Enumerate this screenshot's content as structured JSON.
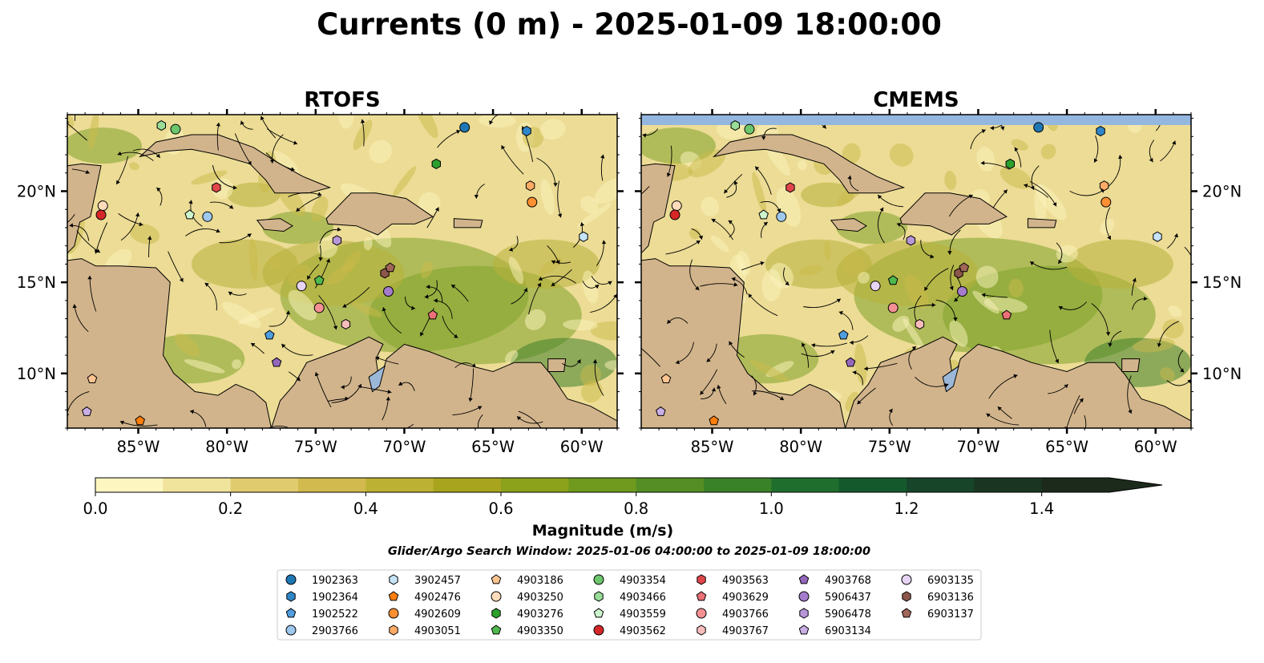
{
  "figure": {
    "title": "Currents (0 m) - 2025-01-09 18:00:00",
    "search_window": "Glider/Argo Search Window: 2025-01-06 04:00:00 to 2025-01-09 18:00:00"
  },
  "panels": [
    {
      "title": "RTOFS"
    },
    {
      "title": "CMEMS"
    }
  ],
  "axes": {
    "lon_ticks": [
      {
        "value": -85,
        "label": "85°W"
      },
      {
        "value": -80,
        "label": "80°W"
      },
      {
        "value": -75,
        "label": "75°W"
      },
      {
        "value": -70,
        "label": "70°W"
      },
      {
        "value": -65,
        "label": "65°W"
      },
      {
        "value": -60,
        "label": "60°W"
      }
    ],
    "lat_ticks": [
      {
        "value": 10,
        "label": "10°N"
      },
      {
        "value": 15,
        "label": "15°N"
      },
      {
        "value": 20,
        "label": "20°N"
      }
    ],
    "xlim": [
      -89,
      -58
    ],
    "ylim": [
      7,
      24.2
    ]
  },
  "colorbar": {
    "label": "Magnitude (m/s)",
    "range": [
      0,
      1.5
    ],
    "extend": "max",
    "ticks": [
      {
        "value": 0.0,
        "label": "0.0"
      },
      {
        "value": 0.2,
        "label": "0.2"
      },
      {
        "value": 0.4,
        "label": "0.4"
      },
      {
        "value": 0.6,
        "label": "0.6"
      },
      {
        "value": 0.8,
        "label": "0.8"
      },
      {
        "value": 1.0,
        "label": "1.0"
      },
      {
        "value": 1.2,
        "label": "1.2"
      },
      {
        "value": 1.4,
        "label": "1.4"
      }
    ],
    "colors": [
      "#fdf6c0",
      "#f0e39c",
      "#e0cb6e",
      "#d2ba4e",
      "#bcb133",
      "#a8a41e",
      "#8ca21a",
      "#6f9a1e",
      "#548e24",
      "#3a8228",
      "#1f6e2e",
      "#13592c",
      "#17452a",
      "#1a3622",
      "#1b2a1b",
      "#1b2a1b"
    ]
  },
  "colors": {
    "land": "#d2b48c",
    "water_fill": "#9cb8d8",
    "ocean_low": "#fdf6c0",
    "ocean_high": "#2e6e2a",
    "cmems_no_data": "#94b7e0"
  },
  "chart_data": {
    "type": "map",
    "floats": [
      {
        "id": "1902363",
        "marker": "circle",
        "color": "#1f77b4",
        "lon": -66.6,
        "lat": 23.5
      },
      {
        "id": "1902364",
        "marker": "hexagon",
        "color": "#2f86c8",
        "lon": -63.1,
        "lat": 23.3
      },
      {
        "id": "1902522",
        "marker": "pentagon",
        "color": "#4f9ee0",
        "lon": -77.6,
        "lat": 12.1
      },
      {
        "id": "2903766",
        "marker": "circle",
        "color": "#9ec8ee",
        "lon": -81.1,
        "lat": 18.6
      },
      {
        "id": "3902457",
        "marker": "hexagon",
        "color": "#c6e4f8",
        "lon": -59.9,
        "lat": 17.5
      },
      {
        "id": "4902476",
        "marker": "pentagon",
        "color": "#ff7f0e",
        "lon": -84.9,
        "lat": 7.4
      },
      {
        "id": "4902609",
        "marker": "circle",
        "color": "#ff8f33",
        "lon": -62.8,
        "lat": 19.4
      },
      {
        "id": "4903051",
        "marker": "hexagon",
        "color": "#ffab66",
        "lon": -62.9,
        "lat": 20.3
      },
      {
        "id": "4903186",
        "marker": "pentagon",
        "color": "#ffc591",
        "lon": -87.6,
        "lat": 9.7
      },
      {
        "id": "4903250",
        "marker": "circle",
        "color": "#ffdcbb",
        "lon": -87.0,
        "lat": 19.2
      },
      {
        "id": "4903276",
        "marker": "hexagon",
        "color": "#2ca02c",
        "lon": -68.2,
        "lat": 21.5
      },
      {
        "id": "4903350",
        "marker": "pentagon",
        "color": "#4fb84f",
        "lon": -74.8,
        "lat": 15.1
      },
      {
        "id": "4903354",
        "marker": "circle",
        "color": "#6cc66c",
        "lon": -82.9,
        "lat": 23.4
      },
      {
        "id": "4903466",
        "marker": "hexagon",
        "color": "#98dc98",
        "lon": -83.7,
        "lat": 23.6
      },
      {
        "id": "4903559",
        "marker": "pentagon",
        "color": "#cdf5cd",
        "lon": -82.1,
        "lat": 18.7
      },
      {
        "id": "4903562",
        "marker": "circle",
        "color": "#d62728",
        "lon": -87.1,
        "lat": 18.7
      },
      {
        "id": "4903563",
        "marker": "hexagon",
        "color": "#e0464a",
        "lon": -80.6,
        "lat": 20.2
      },
      {
        "id": "4903629",
        "marker": "pentagon",
        "color": "#ec7077",
        "lon": -68.4,
        "lat": 13.2
      },
      {
        "id": "4903766",
        "marker": "circle",
        "color": "#f49093",
        "lon": -74.8,
        "lat": 13.6
      },
      {
        "id": "4903767",
        "marker": "hexagon",
        "color": "#f9bcbc",
        "lon": -73.3,
        "lat": 12.7
      },
      {
        "id": "4903768",
        "marker": "pentagon",
        "color": "#9467bd",
        "lon": -77.2,
        "lat": 10.6
      },
      {
        "id": "5906437",
        "marker": "circle",
        "color": "#a57ccc",
        "lon": -70.9,
        "lat": 14.5
      },
      {
        "id": "5906478",
        "marker": "hexagon",
        "color": "#b796d8",
        "lon": -73.8,
        "lat": 17.3
      },
      {
        "id": "6903134",
        "marker": "pentagon",
        "color": "#c9afe6",
        "lon": -87.9,
        "lat": 7.9
      },
      {
        "id": "6903135",
        "marker": "circle",
        "color": "#e7d4f4",
        "lon": -75.8,
        "lat": 14.8
      },
      {
        "id": "6903136",
        "marker": "hexagon",
        "color": "#8c564b",
        "lon": -71.1,
        "lat": 15.5
      },
      {
        "id": "6903137",
        "marker": "pentagon",
        "color": "#a0665a",
        "lon": -70.8,
        "lat": 15.8
      }
    ]
  }
}
